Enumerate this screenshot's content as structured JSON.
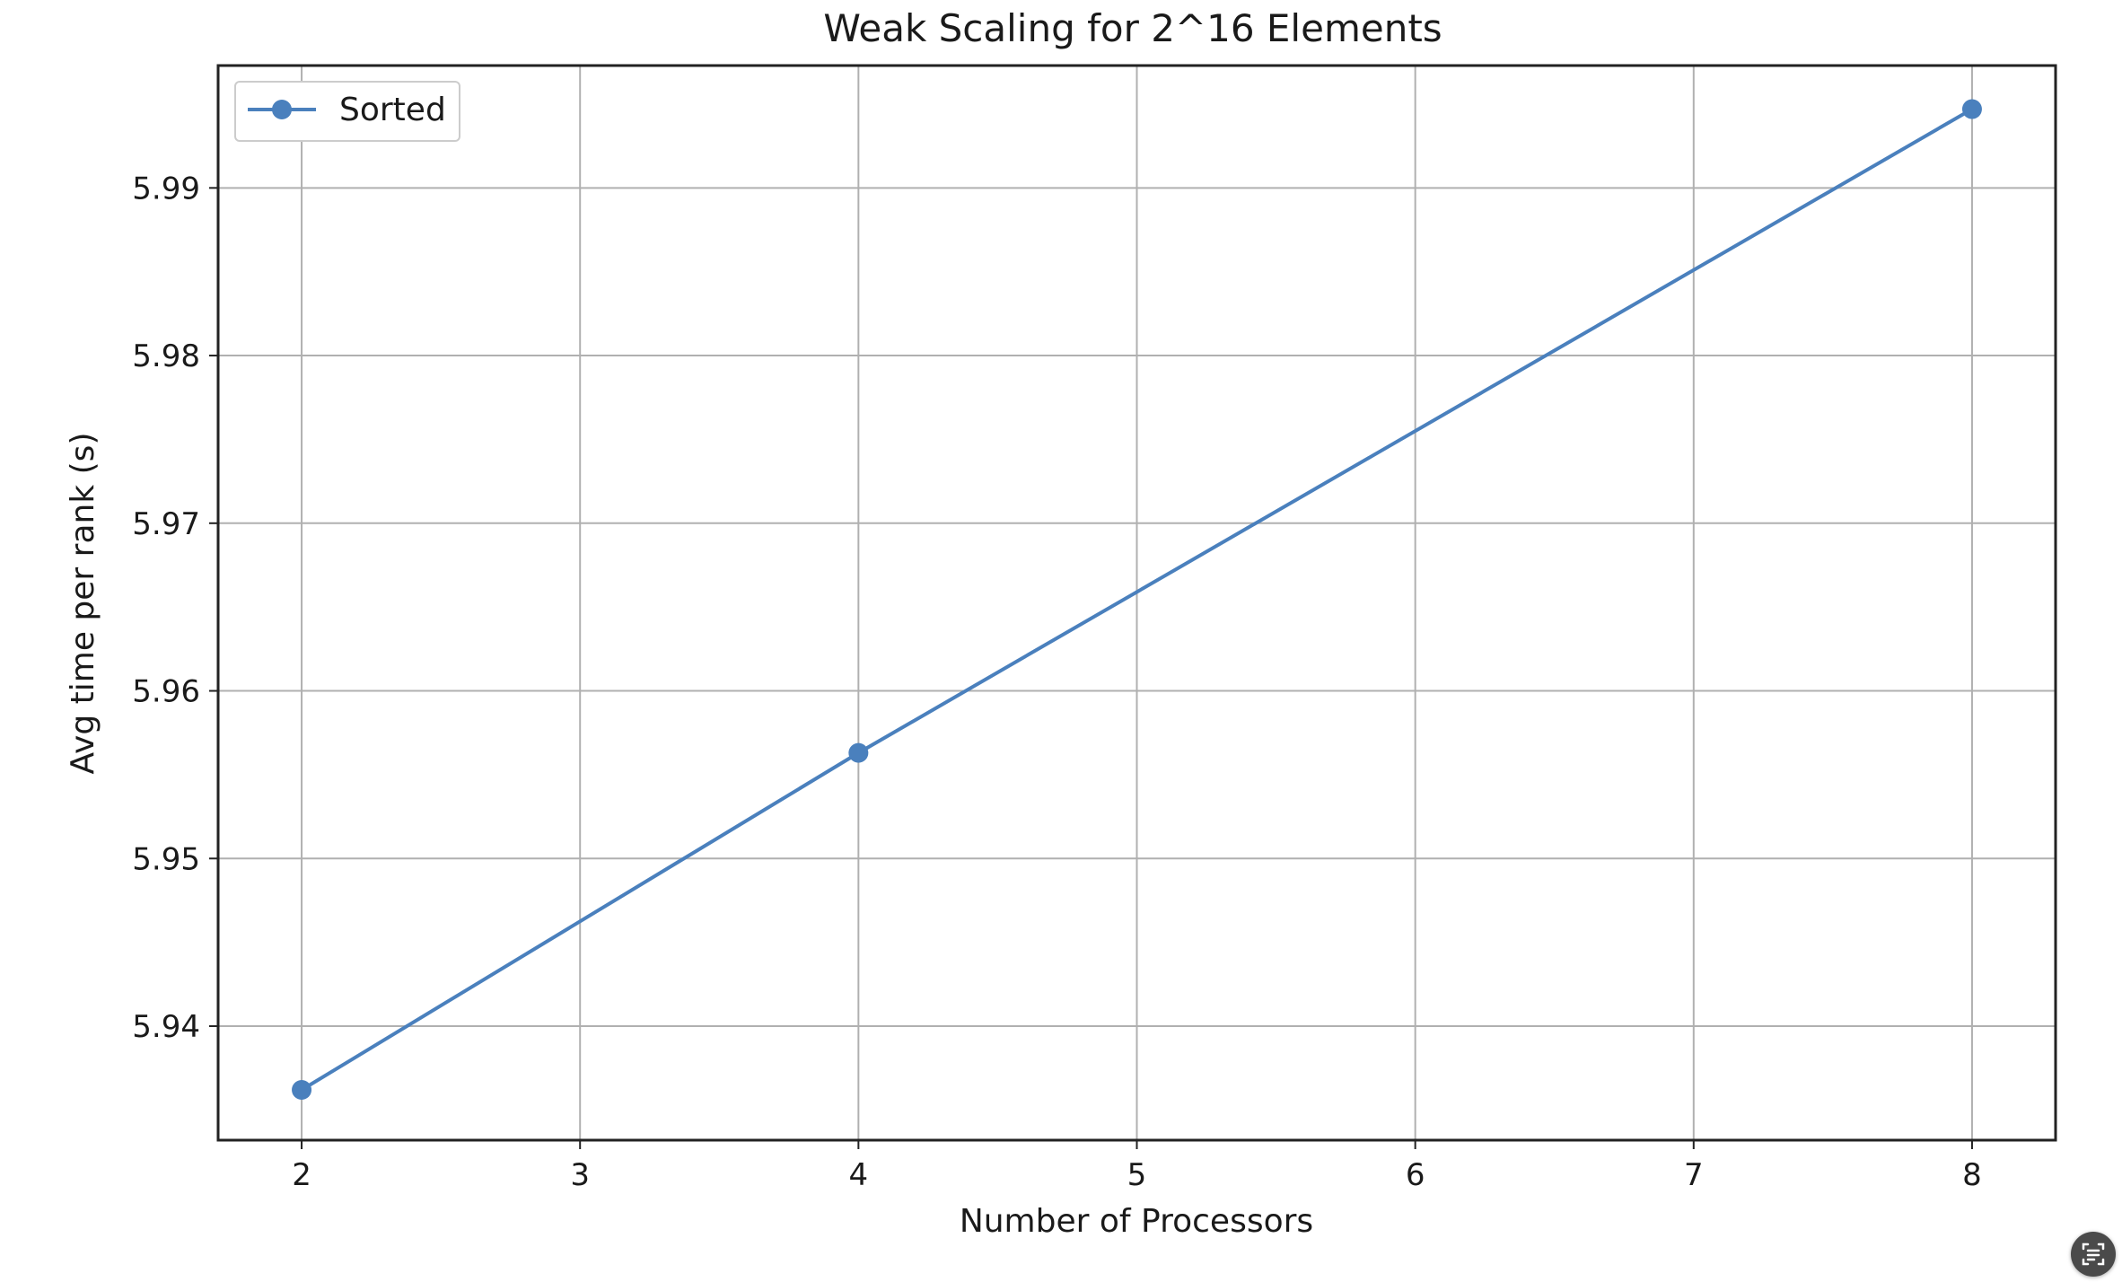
{
  "chart_data": {
    "type": "line",
    "title": "Weak Scaling for 2^16 Elements",
    "xlabel": "Number of Processors",
    "ylabel": "Avg time per rank (s)",
    "x_ticks": [
      2,
      3,
      4,
      5,
      6,
      7,
      8
    ],
    "y_ticks": [
      5.94,
      5.95,
      5.96,
      5.97,
      5.98,
      5.99
    ],
    "y_tick_labels": [
      "5.94",
      "5.95",
      "5.96",
      "5.97",
      "5.98",
      "5.99"
    ],
    "xlim": [
      1.7,
      8.3
    ],
    "ylim": [
      5.9332,
      5.9973
    ],
    "grid": true,
    "legend_position": "top-left",
    "series": [
      {
        "name": "Sorted",
        "color": "#4a80bd",
        "marker": "circle",
        "x": [
          2,
          4,
          8
        ],
        "y": [
          5.9362,
          5.9563,
          5.9947
        ]
      }
    ]
  },
  "overlay": {
    "scan_icon": "scan-text-icon"
  }
}
